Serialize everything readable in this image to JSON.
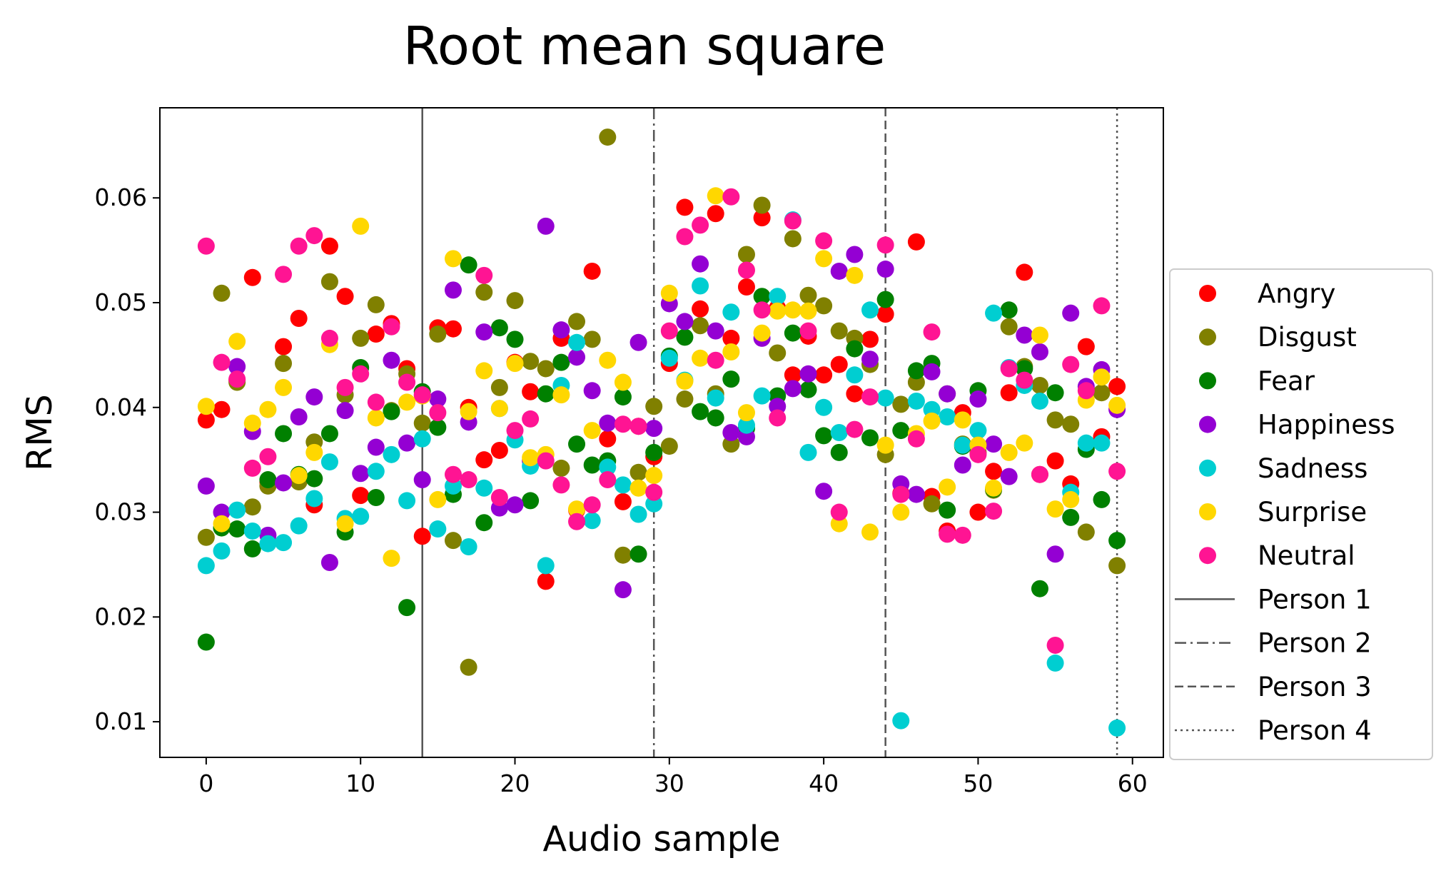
{
  "chart_data": {
    "type": "scatter",
    "title": "Root mean square",
    "xlabel": "Audio sample",
    "ylabel": "RMS",
    "xlim": [
      -3,
      62
    ],
    "ylim": [
      0.0066,
      0.0686
    ],
    "xticks": [
      0,
      10,
      20,
      30,
      40,
      50,
      60
    ],
    "yticks": [
      0.01,
      0.02,
      0.03,
      0.04,
      0.05,
      0.06
    ],
    "grid": false,
    "legend_position": "right, outside plot",
    "x": [
      0,
      1,
      2,
      3,
      4,
      5,
      6,
      7,
      8,
      9,
      10,
      11,
      12,
      13,
      14,
      15,
      16,
      17,
      18,
      19,
      20,
      21,
      22,
      23,
      24,
      25,
      26,
      27,
      28,
      29,
      30,
      31,
      32,
      33,
      34,
      35,
      36,
      37,
      38,
      39,
      40,
      41,
      42,
      43,
      44,
      45,
      46,
      47,
      48,
      49,
      50,
      51,
      52,
      53,
      54,
      55,
      56,
      57,
      58,
      59
    ],
    "series": [
      {
        "name": "Angry",
        "color": "#ff0000",
        "values": [
          0.0388,
          0.0398,
          0.0426,
          0.0524,
          0.0329,
          0.0458,
          0.0485,
          0.0307,
          0.0554,
          0.0506,
          0.0316,
          0.047,
          0.048,
          0.0437,
          0.0277,
          0.0476,
          0.0475,
          0.04,
          0.035,
          0.0359,
          0.0443,
          0.0415,
          0.0234,
          0.0466,
          0.0302,
          0.053,
          0.037,
          0.031,
          0.0382,
          0.0353,
          0.0442,
          0.0591,
          0.0494,
          0.0585,
          0.0466,
          0.0515,
          0.0581,
          0.0495,
          0.0431,
          0.0468,
          0.0431,
          0.0441,
          0.0413,
          0.0465,
          0.0489,
          0.0318,
          0.0558,
          0.0315,
          0.0282,
          0.0395,
          0.03,
          0.0339,
          0.0414,
          0.0529,
          0.0336,
          0.0349,
          0.0327,
          0.0458,
          0.0372,
          0.042
        ]
      },
      {
        "name": "Disgust",
        "color": "#808000",
        "values": [
          0.0276,
          0.0509,
          0.0424,
          0.0305,
          0.0325,
          0.0442,
          0.0329,
          0.0367,
          0.052,
          0.0412,
          0.0466,
          0.0498,
          0.0397,
          0.0432,
          0.0385,
          0.047,
          0.0273,
          0.0152,
          0.051,
          0.0419,
          0.0502,
          0.0444,
          0.0437,
          0.0342,
          0.0482,
          0.0465,
          0.0658,
          0.0259,
          0.0338,
          0.0401,
          0.0363,
          0.0408,
          0.0478,
          0.0413,
          0.0365,
          0.0546,
          0.0593,
          0.0452,
          0.0561,
          0.0507,
          0.0497,
          0.0473,
          0.0466,
          0.0441,
          0.0355,
          0.0403,
          0.0424,
          0.0308,
          0.0413,
          0.0365,
          0.0357,
          0.0321,
          0.0477,
          0.0439,
          0.0421,
          0.0388,
          0.0384,
          0.0281,
          0.0414,
          0.0249
        ]
      },
      {
        "name": "Fear",
        "color": "#008000",
        "values": [
          0.0176,
          0.0285,
          0.0284,
          0.0265,
          0.0331,
          0.0375,
          0.0336,
          0.0332,
          0.0375,
          0.0281,
          0.0438,
          0.0314,
          0.0396,
          0.0209,
          0.0415,
          0.0381,
          0.0317,
          0.0536,
          0.029,
          0.0476,
          0.0465,
          0.0311,
          0.0413,
          0.0443,
          0.0365,
          0.0345,
          0.0349,
          0.041,
          0.026,
          0.0357,
          0.0449,
          0.0467,
          0.0396,
          0.039,
          0.0427,
          0.038,
          0.0506,
          0.0411,
          0.0471,
          0.0417,
          0.0373,
          0.0357,
          0.0456,
          0.0371,
          0.0503,
          0.0378,
          0.0435,
          0.0442,
          0.0302,
          0.0363,
          0.0416,
          0.0322,
          0.0493,
          0.0437,
          0.0227,
          0.0414,
          0.0295,
          0.036,
          0.0312,
          0.0273
        ]
      },
      {
        "name": "Happiness",
        "color": "#9400d3",
        "values": [
          0.0325,
          0.03,
          0.0439,
          0.0377,
          0.0278,
          0.0328,
          0.0391,
          0.041,
          0.0252,
          0.0397,
          0.0337,
          0.0362,
          0.0445,
          0.0366,
          0.0331,
          0.0408,
          0.0512,
          0.0386,
          0.0472,
          0.0304,
          0.0307,
          0.0349,
          0.0573,
          0.0474,
          0.0448,
          0.0416,
          0.0385,
          0.0226,
          0.0462,
          0.038,
          0.0499,
          0.0482,
          0.0537,
          0.0473,
          0.0376,
          0.0372,
          0.0466,
          0.0401,
          0.0418,
          0.0432,
          0.032,
          0.053,
          0.0546,
          0.0446,
          0.0532,
          0.0327,
          0.0317,
          0.0434,
          0.0413,
          0.0345,
          0.0408,
          0.0365,
          0.0334,
          0.0469,
          0.0453,
          0.026,
          0.049,
          0.042,
          0.0436,
          0.0398
        ]
      },
      {
        "name": "Sadness",
        "color": "#00ced1",
        "values": [
          0.0249,
          0.0263,
          0.0302,
          0.0282,
          0.027,
          0.0271,
          0.0287,
          0.0313,
          0.0348,
          0.0294,
          0.0296,
          0.0339,
          0.0355,
          0.0311,
          0.037,
          0.0284,
          0.0325,
          0.0267,
          0.0323,
          0.0399,
          0.0369,
          0.0344,
          0.0249,
          0.0421,
          0.0462,
          0.0292,
          0.0343,
          0.0326,
          0.0298,
          0.0308,
          0.0447,
          0.0426,
          0.0516,
          0.0409,
          0.0491,
          0.0383,
          0.0411,
          0.0506,
          0.0579,
          0.0357,
          0.04,
          0.0376,
          0.0431,
          0.0493,
          0.0409,
          0.0101,
          0.0406,
          0.0398,
          0.0391,
          0.0364,
          0.0378,
          0.049,
          0.0438,
          0.0421,
          0.0406,
          0.0156,
          0.0319,
          0.0366,
          0.0366,
          0.0094
        ]
      },
      {
        "name": "Surprise",
        "color": "#ffd700",
        "values": [
          0.0401,
          0.0289,
          0.0463,
          0.0385,
          0.0398,
          0.0419,
          0.0335,
          0.0357,
          0.046,
          0.0289,
          0.0573,
          0.039,
          0.0256,
          0.0405,
          0.0411,
          0.0312,
          0.0542,
          0.0396,
          0.0435,
          0.0399,
          0.0442,
          0.0352,
          0.0355,
          0.0412,
          0.0303,
          0.0378,
          0.0445,
          0.0424,
          0.0323,
          0.0335,
          0.0509,
          0.0425,
          0.0447,
          0.0602,
          0.0453,
          0.0395,
          0.0471,
          0.0492,
          0.0493,
          0.0492,
          0.0542,
          0.0289,
          0.0526,
          0.0281,
          0.0364,
          0.03,
          0.0375,
          0.0387,
          0.0324,
          0.0388,
          0.0364,
          0.0323,
          0.0357,
          0.0366,
          0.0469,
          0.0303,
          0.0312,
          0.0407,
          0.0429,
          0.0402
        ]
      },
      {
        "name": "Neutral",
        "color": "#ff1493",
        "values": [
          0.0554,
          0.0443,
          0.0427,
          0.0342,
          0.0353,
          0.0527,
          0.0554,
          0.0564,
          0.0466,
          0.0419,
          0.0432,
          0.0405,
          0.0477,
          0.0424,
          0.0412,
          0.0395,
          0.0336,
          0.0331,
          0.0526,
          0.0314,
          0.0378,
          0.0389,
          0.0349,
          0.0326,
          0.0291,
          0.0307,
          0.0331,
          0.0384,
          0.0382,
          0.0319,
          0.0473,
          0.0563,
          0.0574,
          0.0445,
          0.0601,
          0.0531,
          0.0493,
          0.039,
          0.0578,
          0.0473,
          0.0559,
          0.03,
          0.0379,
          0.041,
          0.0555,
          0.0317,
          0.037,
          0.0472,
          0.0279,
          0.0278,
          0.0355,
          0.0301,
          0.0437,
          0.0426,
          0.0336,
          0.0173,
          0.0441,
          0.0416,
          0.0497,
          0.0339
        ]
      }
    ],
    "vlines": [
      {
        "name": "Person 1",
        "x": 14,
        "style": "solid"
      },
      {
        "name": "Person 2",
        "x": 29,
        "style": "dashdot"
      },
      {
        "name": "Person 3",
        "x": 44,
        "style": "dashed"
      },
      {
        "name": "Person 4",
        "x": 59,
        "style": "dotted"
      }
    ]
  }
}
